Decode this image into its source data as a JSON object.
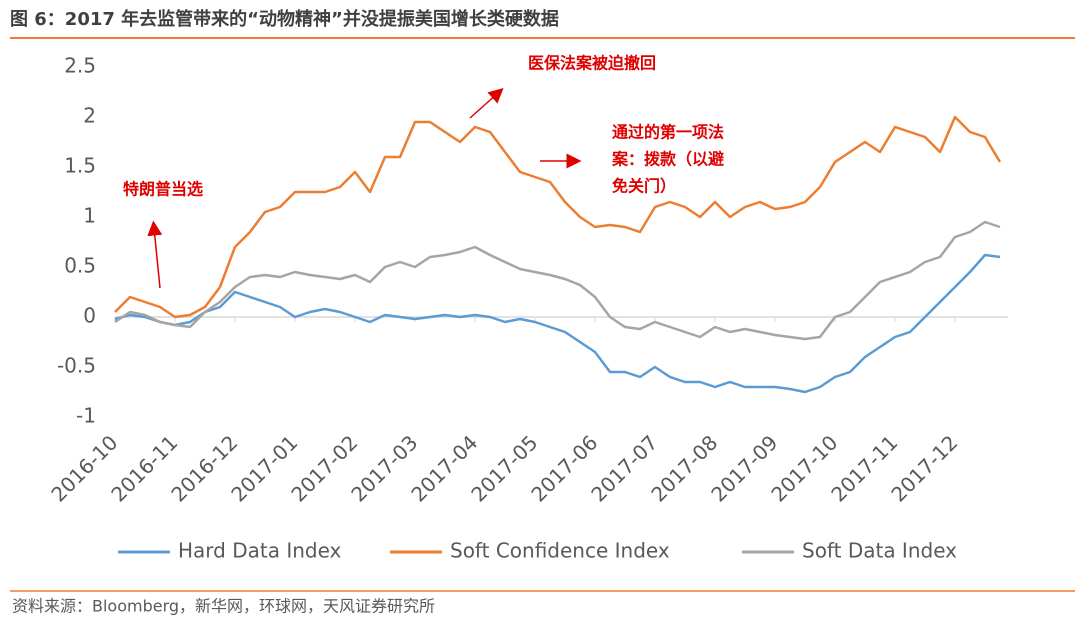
{
  "chart_data": {
    "type": "line",
    "title": "图 6：2017 年去监管带来的“动物精神”并没提振美国增长类硬数据",
    "source": "资料来源：Bloomberg，新华网，环球网，天风证券研究所",
    "categories": [
      "2016-10",
      null,
      null,
      null,
      "2016-11",
      null,
      null,
      null,
      "2016-12",
      null,
      null,
      null,
      "2017-01",
      null,
      null,
      null,
      "2017-02",
      null,
      null,
      null,
      "2017-03",
      null,
      null,
      null,
      "2017-04",
      null,
      null,
      null,
      "2017-05",
      null,
      null,
      null,
      "2017-06",
      null,
      null,
      null,
      "2017-07",
      null,
      null,
      null,
      "2017-08",
      null,
      null,
      null,
      "2017-09",
      null,
      null,
      null,
      "2017-10",
      null,
      null,
      null,
      "2017-11",
      null,
      null,
      null,
      "2017-12",
      null,
      null,
      null
    ],
    "ylim": [
      -1,
      2.5
    ],
    "yticks": [
      -1,
      -0.5,
      0,
      0.5,
      1,
      1.5,
      2,
      2.5
    ],
    "grid": false,
    "series": [
      {
        "name": "Hard Data Index",
        "color": "#5b9bd5",
        "values": [
          -0.02,
          0.02,
          0,
          -0.05,
          -0.08,
          -0.05,
          0.05,
          0.1,
          0.25,
          0.2,
          0.15,
          0.1,
          0,
          0.05,
          0.08,
          0.05,
          0,
          -0.05,
          0.02,
          0,
          -0.02,
          0,
          0.02,
          0,
          0.02,
          0,
          -0.05,
          -0.02,
          -0.05,
          -0.1,
          -0.15,
          -0.25,
          -0.35,
          -0.55,
          -0.55,
          -0.6,
          -0.5,
          -0.6,
          -0.65,
          -0.65,
          -0.7,
          -0.65,
          -0.7,
          -0.7,
          -0.7,
          -0.72,
          -0.75,
          -0.7,
          -0.6,
          -0.55,
          -0.4,
          -0.3,
          -0.2,
          -0.15,
          0,
          0.15,
          0.3,
          0.45,
          0.62,
          0.6
        ]
      },
      {
        "name": "Soft Confidence Index",
        "color": "#ed7d31",
        "values": [
          0.05,
          0.2,
          0.15,
          0.1,
          0,
          0.02,
          0.1,
          0.3,
          0.7,
          0.85,
          1.05,
          1.1,
          1.25,
          1.25,
          1.25,
          1.3,
          1.45,
          1.25,
          1.6,
          1.6,
          1.95,
          1.95,
          1.85,
          1.75,
          1.9,
          1.85,
          1.65,
          1.45,
          1.4,
          1.35,
          1.15,
          1,
          0.9,
          0.92,
          0.9,
          0.85,
          1.1,
          1.15,
          1.1,
          1,
          1.15,
          1,
          1.1,
          1.15,
          1.08,
          1.1,
          1.15,
          1.3,
          1.55,
          1.65,
          1.75,
          1.65,
          1.9,
          1.85,
          1.8,
          1.65,
          2,
          1.85,
          1.8,
          1.55
        ]
      },
      {
        "name": "Soft Data Index",
        "color": "#a5a5a5",
        "values": [
          -0.05,
          0.05,
          0.02,
          -0.05,
          -0.08,
          -0.1,
          0.05,
          0.15,
          0.3,
          0.4,
          0.42,
          0.4,
          0.45,
          0.42,
          0.4,
          0.38,
          0.42,
          0.35,
          0.5,
          0.55,
          0.5,
          0.6,
          0.62,
          0.65,
          0.7,
          0.62,
          0.55,
          0.48,
          0.45,
          0.42,
          0.38,
          0.32,
          0.2,
          0,
          -0.1,
          -0.12,
          -0.05,
          -0.1,
          -0.15,
          -0.2,
          -0.1,
          -0.15,
          -0.12,
          -0.15,
          -0.18,
          -0.2,
          -0.22,
          -0.2,
          0,
          0.05,
          0.2,
          0.35,
          0.4,
          0.45,
          0.55,
          0.6,
          0.8,
          0.85,
          0.95,
          0.9
        ]
      }
    ],
    "annotations": [
      {
        "lines": [
          "特朗普当选"
        ]
      },
      {
        "lines": [
          "医保法案被迫撤回"
        ]
      },
      {
        "lines": [
          "通过的第一项法",
          "案：拨款（以避",
          "免关门）"
        ]
      }
    ]
  }
}
